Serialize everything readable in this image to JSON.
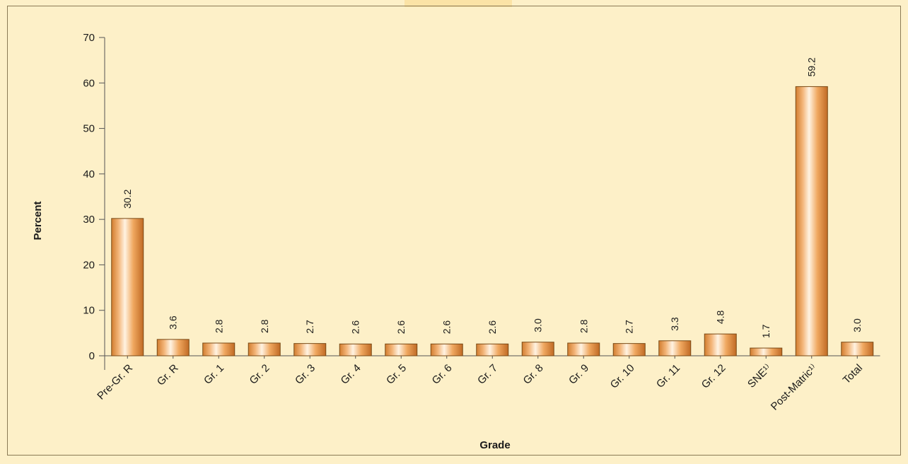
{
  "chart_data": {
    "type": "bar",
    "categories": [
      "Pre-Gr. R",
      "Gr. R",
      "Gr. 1",
      "Gr. 2",
      "Gr. 3",
      "Gr. 4",
      "Gr. 5",
      "Gr. 6",
      "Gr. 7",
      "Gr. 8",
      "Gr. 9",
      "Gr. 10",
      "Gr. 11",
      "Gr. 12",
      "SNE¹⁾",
      "Post-Matric¹⁾",
      "Total"
    ],
    "values": [
      30.2,
      3.6,
      2.8,
      2.8,
      2.7,
      2.6,
      2.6,
      2.6,
      2.6,
      3.0,
      2.8,
      2.7,
      3.3,
      4.8,
      1.7,
      59.2,
      3.0
    ],
    "value_labels": [
      "30.2",
      "3.6",
      "2.8",
      "2.8",
      "2.7",
      "2.6",
      "2.6",
      "2.6",
      "2.6",
      "3.0",
      "2.8",
      "2.7",
      "3.3",
      "4.8",
      "1.7",
      "59.2",
      "3.0"
    ],
    "title": "",
    "xlabel": "Grade",
    "ylabel": "Percent",
    "ylim": [
      0,
      70
    ],
    "yticks": [
      0,
      10,
      20,
      30,
      40,
      50,
      60,
      70
    ],
    "grid": false,
    "bar_color": "#f0a860",
    "bar_highlight": "#fff3e2"
  }
}
